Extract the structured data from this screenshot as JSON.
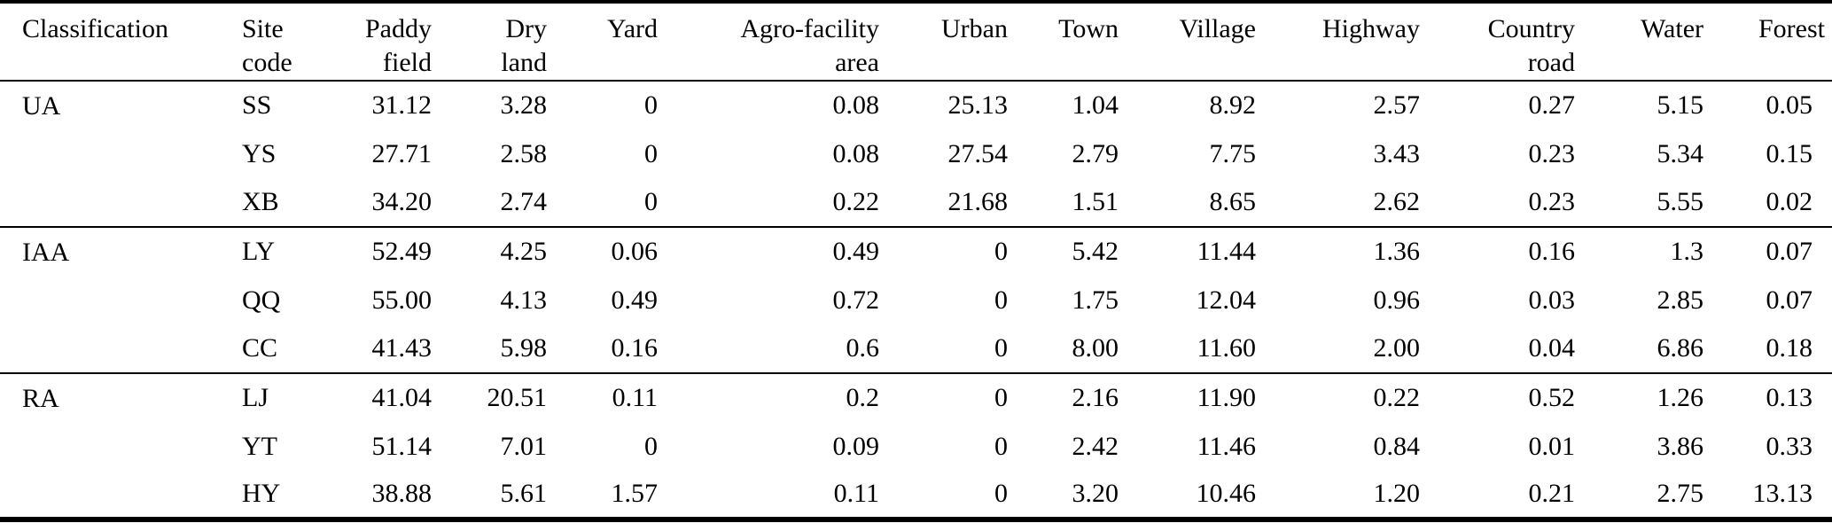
{
  "colors": {
    "background": "#ffffff",
    "text": "#000000",
    "rule": "#000000"
  },
  "table": {
    "columns": [
      {
        "line1": "Classification",
        "line2": ""
      },
      {
        "line1": "Site",
        "line2": "code"
      },
      {
        "line1": "Paddy",
        "line2": "field"
      },
      {
        "line1": "Dry",
        "line2": "land"
      },
      {
        "line1": "Yard",
        "line2": ""
      },
      {
        "line1": "Agro-facility",
        "line2": "area"
      },
      {
        "line1": "Urban",
        "line2": ""
      },
      {
        "line1": "Town",
        "line2": ""
      },
      {
        "line1": "Village",
        "line2": ""
      },
      {
        "line1": "Highway",
        "line2": ""
      },
      {
        "line1": "Country",
        "line2": "road"
      },
      {
        "line1": "Water",
        "line2": ""
      },
      {
        "line1": "Forest",
        "line2": ""
      }
    ],
    "value_columns": [
      "Paddy field",
      "Dry land",
      "Yard",
      "Agro-facility area",
      "Urban",
      "Town",
      "Village",
      "Highway",
      "Country road",
      "Water",
      "Forest"
    ],
    "groups": [
      {
        "classification": "UA",
        "rows": [
          {
            "site": "SS",
            "values": [
              "31.12",
              "3.28",
              "0",
              "0.08",
              "25.13",
              "1.04",
              "8.92",
              "2.57",
              "0.27",
              "5.15",
              "0.05"
            ]
          },
          {
            "site": "YS",
            "values": [
              "27.71",
              "2.58",
              "0",
              "0.08",
              "27.54",
              "2.79",
              "7.75",
              "3.43",
              "0.23",
              "5.34",
              "0.15"
            ]
          },
          {
            "site": "XB",
            "values": [
              "34.20",
              "2.74",
              "0",
              "0.22",
              "21.68",
              "1.51",
              "8.65",
              "2.62",
              "0.23",
              "5.55",
              "0.02"
            ]
          }
        ]
      },
      {
        "classification": "IAA",
        "rows": [
          {
            "site": "LY",
            "values": [
              "52.49",
              "4.25",
              "0.06",
              "0.49",
              "0",
              "5.42",
              "11.44",
              "1.36",
              "0.16",
              "1.3",
              "0.07"
            ]
          },
          {
            "site": "QQ",
            "values": [
              "55.00",
              "4.13",
              "0.49",
              "0.72",
              "0",
              "1.75",
              "12.04",
              "0.96",
              "0.03",
              "2.85",
              "0.07"
            ]
          },
          {
            "site": "CC",
            "values": [
              "41.43",
              "5.98",
              "0.16",
              "0.6",
              "0",
              "8.00",
              "11.60",
              "2.00",
              "0.04",
              "6.86",
              "0.18"
            ]
          }
        ]
      },
      {
        "classification": "RA",
        "rows": [
          {
            "site": "LJ",
            "values": [
              "41.04",
              "20.51",
              "0.11",
              "0.2",
              "0",
              "2.16",
              "11.90",
              "0.22",
              "0.52",
              "1.26",
              "0.13"
            ]
          },
          {
            "site": "YT",
            "values": [
              "51.14",
              "7.01",
              "0",
              "0.09",
              "0",
              "2.42",
              "11.46",
              "0.84",
              "0.01",
              "3.86",
              "0.33"
            ]
          },
          {
            "site": "HY",
            "values": [
              "38.88",
              "5.61",
              "1.57",
              "0.11",
              "0",
              "3.20",
              "10.46",
              "1.20",
              "0.21",
              "2.75",
              "13.13"
            ]
          }
        ]
      }
    ]
  }
}
